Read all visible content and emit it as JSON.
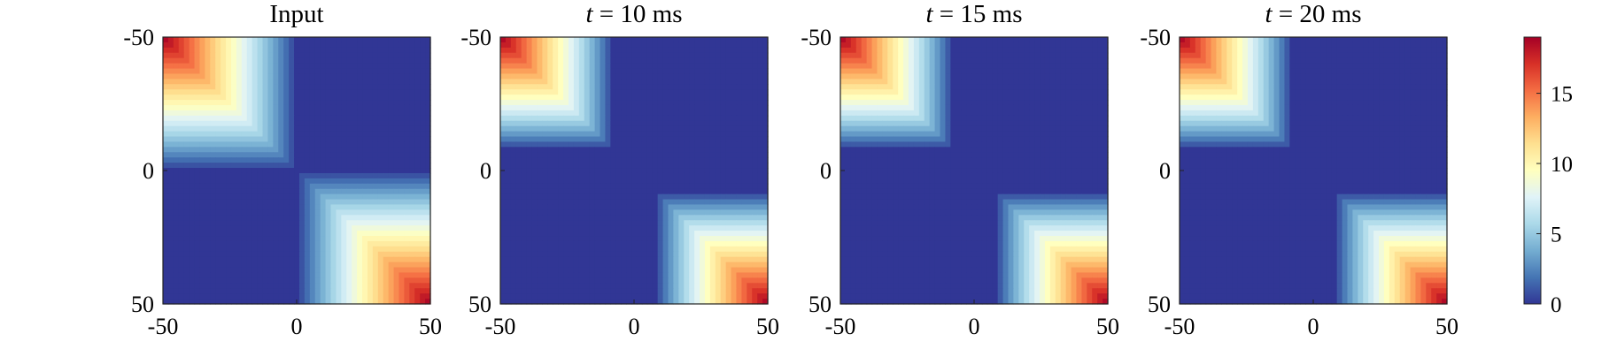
{
  "chart_data": {
    "type": "heatmap",
    "panels": [
      {
        "title": "Input",
        "variant": "input"
      },
      {
        "title": "t = 10 ms",
        "title_var": "t",
        "title_rest": " = 10 ms",
        "variant": "model"
      },
      {
        "title": "t = 15 ms",
        "title_var": "t",
        "title_rest": " = 15 ms",
        "variant": "model"
      },
      {
        "title": "t = 20 ms",
        "title_var": "t",
        "title_rest": " = 20 ms",
        "variant": "model"
      }
    ],
    "x_ticks": [
      "-50",
      "0",
      "50"
    ],
    "y_ticks": [
      "-50",
      "0",
      "50"
    ],
    "xlim": [
      -50,
      50
    ],
    "ylim": [
      -50,
      50
    ],
    "y_direction": "reversed",
    "colorbar": {
      "min": 0,
      "max": 19,
      "ticks": [
        "0",
        "5",
        "10",
        "15"
      ],
      "tick_values": [
        0,
        5,
        10,
        15
      ],
      "colormap": [
        "#313695",
        "#4575b4",
        "#74add1",
        "#abd9e9",
        "#e0f3f8",
        "#ffffbf",
        "#fee090",
        "#fdae61",
        "#f46d43",
        "#d73027",
        "#a50026"
      ]
    },
    "structure": "two diagonal blocks: high values near (-50,-50) and (50,50) corners, decaying toward 0 at the center; off-diagonal blocks near 0",
    "peak_value": 19
  }
}
